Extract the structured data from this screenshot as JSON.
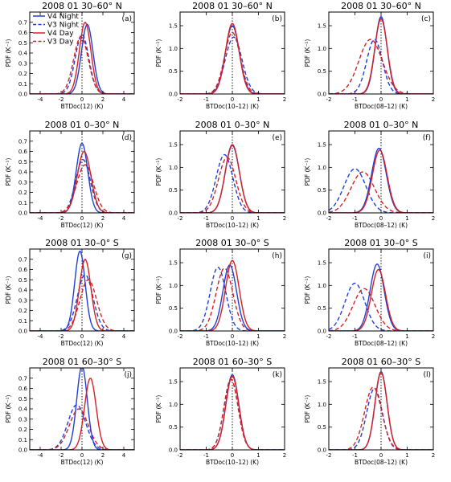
{
  "legend": [
    {
      "label": "V4  Night",
      "color": "#1f3fd6",
      "dash": false
    },
    {
      "label": "V3  Night",
      "color": "#1f3fd6",
      "dash": true
    },
    {
      "label": "V4  Day",
      "color": "#d62024",
      "dash": false
    },
    {
      "label": "V3  Day",
      "color": "#d62024",
      "dash": true
    }
  ],
  "chart_data": [
    {
      "type": "line",
      "panel_label": "(a)",
      "title": "2008 01  30–60° N",
      "xlabel": "BTDoc(12)  (K)",
      "ylabel": "PDF  (K⁻¹)",
      "xlim": [
        -5,
        5
      ],
      "ylim": [
        0,
        0.8
      ],
      "xticks": [
        -4,
        -2,
        0,
        2,
        4
      ],
      "yticks": [
        0.0,
        0.1,
        0.2,
        0.3,
        0.4,
        0.5,
        0.6,
        0.7
      ],
      "series": [
        {
          "name": "V4 Night",
          "center": 0.5,
          "width": 0.55,
          "peak": 0.68
        },
        {
          "name": "V3 Night",
          "center": 0.0,
          "width": 0.65,
          "peak": 0.58
        },
        {
          "name": "V4 Day",
          "center": 0.3,
          "width": 0.55,
          "peak": 0.7
        },
        {
          "name": "V3 Day",
          "center": -0.1,
          "width": 0.7,
          "peak": 0.56
        }
      ]
    },
    {
      "type": "line",
      "panel_label": "(b)",
      "title": "2008 01  30–60° N",
      "xlabel": "BTDoc(10–12)  (K)",
      "ylabel": "PDF  (K⁻¹)",
      "xlim": [
        -2,
        2
      ],
      "ylim": [
        0,
        1.8
      ],
      "xticks": [
        -2,
        -1,
        0,
        1,
        2
      ],
      "yticks": [
        0.0,
        0.5,
        1.0,
        1.5
      ],
      "series": [
        {
          "name": "V4 Night",
          "center": 0.0,
          "width": 0.27,
          "peak": 1.5
        },
        {
          "name": "V3 Night",
          "center": 0.05,
          "width": 0.32,
          "peak": 1.25
        },
        {
          "name": "V4 Day",
          "center": 0.0,
          "width": 0.26,
          "peak": 1.55
        },
        {
          "name": "V3 Day",
          "center": 0.0,
          "width": 0.3,
          "peak": 1.35
        }
      ]
    },
    {
      "type": "line",
      "panel_label": "(c)",
      "title": "2008 01  30–60° N",
      "xlabel": "BTDoc(08–12)  (K)",
      "ylabel": "PDF  (K⁻¹)",
      "xlim": [
        -2,
        2
      ],
      "ylim": [
        0,
        1.8
      ],
      "xticks": [
        -2,
        -1,
        0,
        1,
        2
      ],
      "yticks": [
        0.0,
        0.5,
        1.0,
        1.5
      ],
      "series": [
        {
          "name": "V4 Night",
          "center": 0.0,
          "width": 0.23,
          "peak": 1.7
        },
        {
          "name": "V3 Night",
          "center": -0.25,
          "width": 0.3,
          "peak": 1.2
        },
        {
          "name": "V4 Day",
          "center": 0.0,
          "width": 0.24,
          "peak": 1.65
        },
        {
          "name": "V3 Day",
          "center": -0.4,
          "width": 0.45,
          "peak": 1.2
        }
      ]
    },
    {
      "type": "line",
      "panel_label": "(d)",
      "title": "2008 01  0–30° N",
      "xlabel": "BTDoc(12)  (K)",
      "ylabel": "PDF  (K⁻¹)",
      "xlim": [
        -5,
        5
      ],
      "ylim": [
        0,
        0.8
      ],
      "xticks": [
        -4,
        -2,
        0,
        2,
        4
      ],
      "yticks": [
        0.0,
        0.1,
        0.2,
        0.3,
        0.4,
        0.5,
        0.6,
        0.7
      ],
      "series": [
        {
          "name": "V4 Night",
          "center": 0.0,
          "width": 0.55,
          "peak": 0.68
        },
        {
          "name": "V3 Night",
          "center": 0.1,
          "width": 0.7,
          "peak": 0.52
        },
        {
          "name": "V4 Day",
          "center": 0.2,
          "width": 0.65,
          "peak": 0.6
        },
        {
          "name": "V3 Day",
          "center": 0.3,
          "width": 0.8,
          "peak": 0.47
        }
      ]
    },
    {
      "type": "line",
      "panel_label": "(e)",
      "title": "2008 01  0–30° N",
      "xlabel": "BTDoc(10–12)  (K)",
      "ylabel": "PDF  (K⁻¹)",
      "xlim": [
        -2,
        2
      ],
      "ylim": [
        0,
        1.8
      ],
      "xticks": [
        -2,
        -1,
        0,
        1,
        2
      ],
      "yticks": [
        0.0,
        0.5,
        1.0,
        1.5
      ],
      "series": [
        {
          "name": "V4 Night",
          "center": 0.0,
          "width": 0.27,
          "peak": 1.48
        },
        {
          "name": "V3 Night",
          "center": -0.3,
          "width": 0.32,
          "peak": 1.28
        },
        {
          "name": "V4 Day",
          "center": 0.0,
          "width": 0.27,
          "peak": 1.5
        },
        {
          "name": "V3 Day",
          "center": -0.2,
          "width": 0.33,
          "peak": 1.22
        }
      ]
    },
    {
      "type": "line",
      "panel_label": "(f)",
      "title": "2008 01  0–30° N",
      "xlabel": "BTDoc(08–12)  (K)",
      "ylabel": "PDF  (K⁻¹)",
      "xlim": [
        -2,
        2
      ],
      "ylim": [
        0,
        1.8
      ],
      "xticks": [
        -2,
        -1,
        0,
        1,
        2
      ],
      "yticks": [
        0.0,
        0.5,
        1.0,
        1.5
      ],
      "series": [
        {
          "name": "V4 Night",
          "center": -0.08,
          "width": 0.28,
          "peak": 1.42
        },
        {
          "name": "V3 Night",
          "center": -1.0,
          "width": 0.42,
          "peak": 0.97
        },
        {
          "name": "V4 Day",
          "center": -0.05,
          "width": 0.28,
          "peak": 1.38
        },
        {
          "name": "V3 Day",
          "center": -0.7,
          "width": 0.45,
          "peak": 0.9
        }
      ]
    },
    {
      "type": "line",
      "panel_label": "(g)",
      "title": "2008 01  30–0° S",
      "xlabel": "BTDoc(12)  (K)",
      "ylabel": "PDF  (K⁻¹)",
      "xlim": [
        -5,
        5
      ],
      "ylim": [
        0,
        0.8
      ],
      "xticks": [
        -4,
        -2,
        0,
        2,
        4
      ],
      "yticks": [
        0.0,
        0.1,
        0.2,
        0.3,
        0.4,
        0.5,
        0.6,
        0.7
      ],
      "series": [
        {
          "name": "V4 Night",
          "center": -0.2,
          "width": 0.5,
          "peak": 0.78
        },
        {
          "name": "V3 Night",
          "center": 0.3,
          "width": 0.75,
          "peak": 0.55
        },
        {
          "name": "V4 Day",
          "center": 0.3,
          "width": 0.55,
          "peak": 0.7
        },
        {
          "name": "V3 Day",
          "center": 0.6,
          "width": 0.8,
          "peak": 0.5
        }
      ]
    },
    {
      "type": "line",
      "panel_label": "(h)",
      "title": "2008 01  30–0° S",
      "xlabel": "BTDoc(10–12)  (K)",
      "ylabel": "PDF  (K⁻¹)",
      "xlim": [
        -2,
        2
      ],
      "ylim": [
        0,
        1.8
      ],
      "xticks": [
        -2,
        -1,
        0,
        1,
        2
      ],
      "yticks": [
        0.0,
        0.5,
        1.0,
        1.5
      ],
      "series": [
        {
          "name": "V4 Night",
          "center": -0.1,
          "width": 0.26,
          "peak": 1.45
        },
        {
          "name": "V3 Night",
          "center": -0.55,
          "width": 0.3,
          "peak": 1.4
        },
        {
          "name": "V4 Day",
          "center": 0.0,
          "width": 0.26,
          "peak": 1.55
        },
        {
          "name": "V3 Day",
          "center": -0.3,
          "width": 0.32,
          "peak": 1.38
        }
      ]
    },
    {
      "type": "line",
      "panel_label": "(i)",
      "title": "2008 01  30–0° S",
      "xlabel": "BTDoc(08–12)  (K)",
      "ylabel": "PDF  (K⁻¹)",
      "xlim": [
        -2,
        2
      ],
      "ylim": [
        0,
        1.8
      ],
      "xticks": [
        -2,
        -1,
        0,
        1,
        2
      ],
      "yticks": [
        0.0,
        0.5,
        1.0,
        1.5
      ],
      "series": [
        {
          "name": "V4 Night",
          "center": -0.15,
          "width": 0.27,
          "peak": 1.47
        },
        {
          "name": "V3 Night",
          "center": -1.0,
          "width": 0.38,
          "peak": 1.05
        },
        {
          "name": "V4 Day",
          "center": -0.1,
          "width": 0.27,
          "peak": 1.35
        },
        {
          "name": "V3 Day",
          "center": -0.65,
          "width": 0.42,
          "peak": 0.93
        }
      ]
    },
    {
      "type": "line",
      "panel_label": "(j)",
      "title": "2008 01  60–30° S",
      "xlabel": "BTDoc(12)  (K)",
      "ylabel": "PDF  (K⁻¹)",
      "xlim": [
        -5,
        5
      ],
      "ylim": [
        0,
        0.8
      ],
      "xticks": [
        -4,
        -2,
        0,
        2,
        4
      ],
      "yticks": [
        0.0,
        0.1,
        0.2,
        0.3,
        0.4,
        0.5,
        0.6,
        0.7
      ],
      "series": [
        {
          "name": "V4 Night",
          "center": 0.0,
          "width": 0.5,
          "peak": 0.82
        },
        {
          "name": "V3 Night",
          "center": -0.5,
          "width": 0.85,
          "peak": 0.44
        },
        {
          "name": "V4 Day",
          "center": 0.8,
          "width": 0.55,
          "peak": 0.7
        },
        {
          "name": "V3 Day",
          "center": -0.3,
          "width": 0.9,
          "peak": 0.4
        }
      ]
    },
    {
      "type": "line",
      "panel_label": "(k)",
      "title": "2008 01  60–30° S",
      "xlabel": "BTDoc(10–12)  (K)",
      "ylabel": "PDF  (K⁻¹)",
      "xlim": [
        -2,
        2
      ],
      "ylim": [
        0,
        1.8
      ],
      "xticks": [
        -2,
        -1,
        0,
        1,
        2
      ],
      "yticks": [
        0.0,
        0.5,
        1.0,
        1.5
      ],
      "series": [
        {
          "name": "V4 Night",
          "center": 0.0,
          "width": 0.25,
          "peak": 1.65
        },
        {
          "name": "V3 Night",
          "center": -0.05,
          "width": 0.27,
          "peak": 1.55
        },
        {
          "name": "V4 Day",
          "center": 0.0,
          "width": 0.25,
          "peak": 1.62
        },
        {
          "name": "V3 Day",
          "center": -0.05,
          "width": 0.27,
          "peak": 1.55
        }
      ]
    },
    {
      "type": "line",
      "panel_label": "(l)",
      "title": "2008 01  60–30° S",
      "xlabel": "BTDoc(08–12)  (K)",
      "ylabel": "PDF  (K⁻¹)",
      "xlim": [
        -2,
        2
      ],
      "ylim": [
        0,
        1.8
      ],
      "xticks": [
        -2,
        -1,
        0,
        1,
        2
      ],
      "yticks": [
        0.0,
        0.5,
        1.0,
        1.5
      ],
      "series": [
        {
          "name": "V4 Night",
          "center": 0.0,
          "width": 0.23,
          "peak": 1.72
        },
        {
          "name": "V3 Night",
          "center": -0.25,
          "width": 0.3,
          "peak": 1.35
        },
        {
          "name": "V4 Day",
          "center": 0.0,
          "width": 0.23,
          "peak": 1.7
        },
        {
          "name": "V3 Day",
          "center": -0.3,
          "width": 0.33,
          "peak": 1.38
        }
      ]
    }
  ]
}
